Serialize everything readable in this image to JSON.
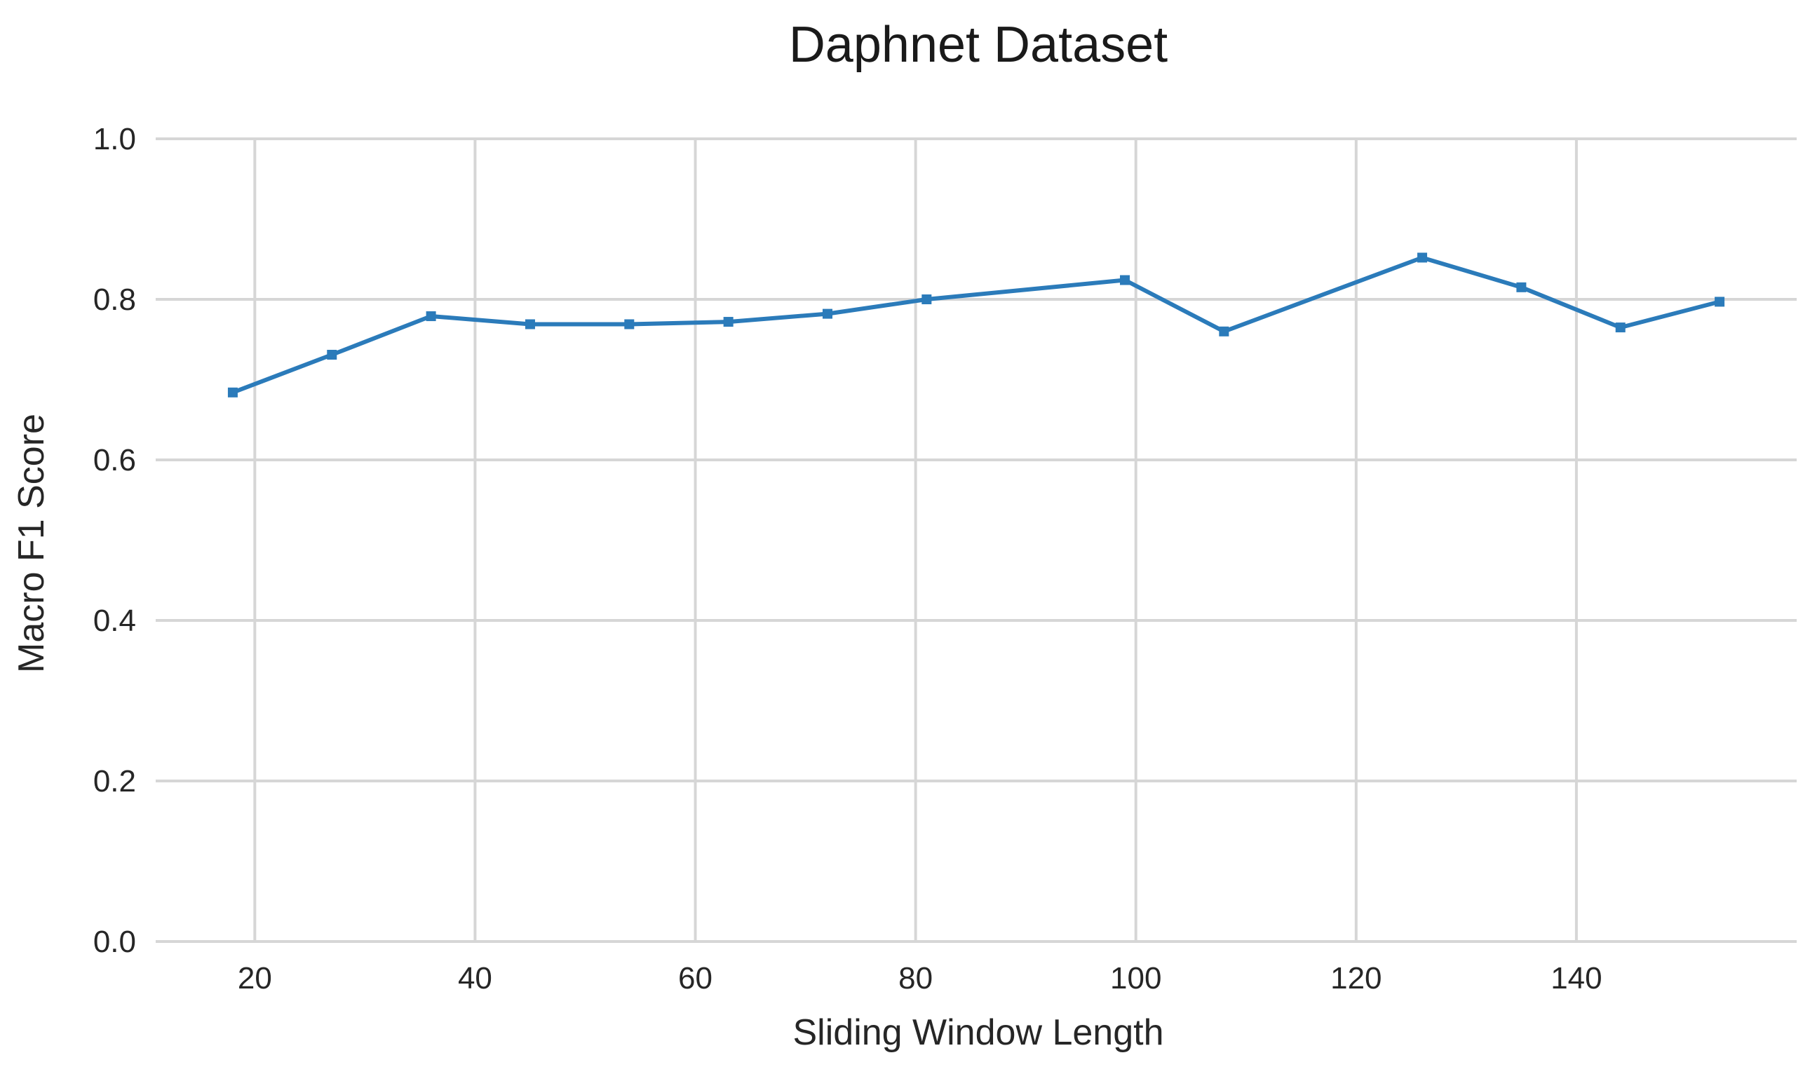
{
  "chart_data": {
    "type": "line",
    "title": "Daphnet Dataset",
    "xlabel": "Sliding Window Length",
    "ylabel": "Macro F1 Score",
    "xlim": [
      11,
      160
    ],
    "ylim": [
      0.0,
      1.0
    ],
    "xticks": [
      20,
      40,
      60,
      80,
      100,
      120,
      140
    ],
    "xtick_labels": [
      "20",
      "40",
      "60",
      "80",
      "100",
      "120",
      "140"
    ],
    "yticks": [
      0.0,
      0.2,
      0.4,
      0.6,
      0.8,
      1.0
    ],
    "ytick_labels": [
      "0.0",
      "0.2",
      "0.4",
      "0.6",
      "0.8",
      "1.0"
    ],
    "grid": true,
    "legend": false,
    "series": [
      {
        "color": "#2b7bba",
        "marker": "square",
        "x": [
          18,
          27,
          36,
          45,
          54,
          63,
          72,
          81,
          99,
          108,
          126,
          135,
          144,
          153
        ],
        "y": [
          0.684,
          0.731,
          0.779,
          0.769,
          0.769,
          0.772,
          0.782,
          0.8,
          0.824,
          0.76,
          0.852,
          0.815,
          0.765,
          0.797
        ]
      }
    ]
  }
}
